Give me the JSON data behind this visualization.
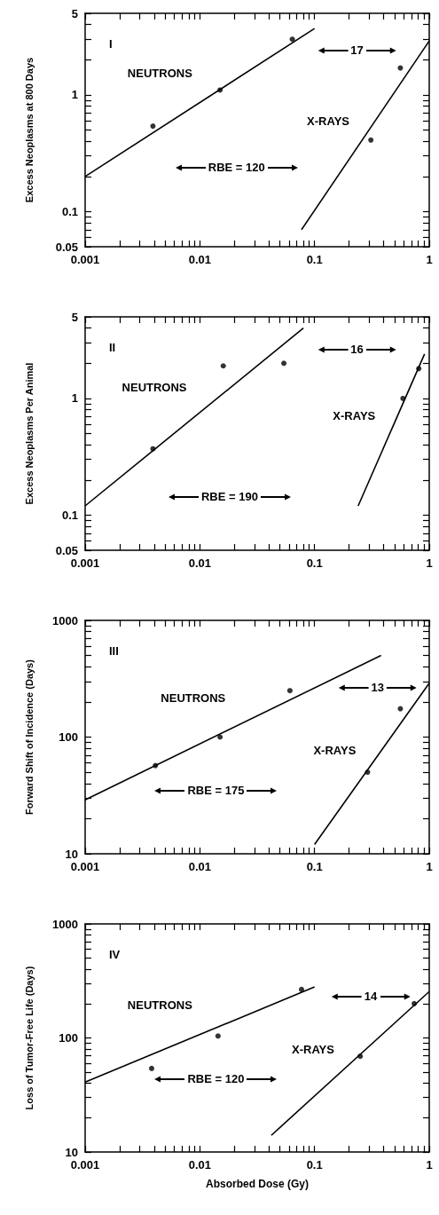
{
  "chart_data": [
    {
      "type": "line",
      "title": "I",
      "ylabel": "Excess Neoplasms at 800 Days",
      "log": "xy",
      "xlim": [
        0.001,
        1
      ],
      "ylim": [
        0.05,
        5
      ],
      "xticks": [
        0.001,
        {
          "value": 0.002,
          "label": null
        },
        {
          "value": 0.003,
          "label": null
        },
        {
          "value": 0.004,
          "label": null
        },
        {
          "value": 0.005,
          "label": null
        },
        {
          "value": 0.006,
          "label": null
        },
        {
          "value": 0.007,
          "label": null
        },
        {
          "value": 0.008,
          "label": null
        },
        {
          "value": 0.009,
          "label": null
        },
        0.01,
        {
          "value": 0.02,
          "label": null
        },
        {
          "value": 0.03,
          "label": null
        },
        {
          "value": 0.04,
          "label": null
        },
        {
          "value": 0.05,
          "label": null
        },
        {
          "value": 0.06,
          "label": null
        },
        {
          "value": 0.07,
          "label": null
        },
        {
          "value": 0.08,
          "label": null
        },
        {
          "value": 0.09,
          "label": null
        },
        0.1,
        {
          "value": 0.2,
          "label": null
        },
        {
          "value": 0.3,
          "label": null
        },
        {
          "value": 0.4,
          "label": null
        },
        {
          "value": 0.5,
          "label": null
        },
        {
          "value": 0.6,
          "label": null
        },
        {
          "value": 0.7,
          "label": null
        },
        {
          "value": 0.8,
          "label": null
        },
        {
          "value": 0.9,
          "label": null
        },
        1
      ],
      "yticks": [
        0.05,
        {
          "value": 0.06,
          "label": null
        },
        {
          "value": 0.07,
          "label": null
        },
        {
          "value": 0.08,
          "label": null
        },
        {
          "value": 0.09,
          "label": null
        },
        0.1,
        {
          "value": 0.2,
          "label": null
        },
        {
          "value": 0.3,
          "label": null
        },
        {
          "value": 0.4,
          "label": null
        },
        {
          "value": 0.5,
          "label": null
        },
        {
          "value": 0.6,
          "label": null
        },
        {
          "value": 0.7,
          "label": null
        },
        {
          "value": 0.8,
          "label": null
        },
        {
          "value": 0.9,
          "label": null
        },
        1,
        {
          "value": 2,
          "label": null
        },
        {
          "value": 3,
          "label": null
        },
        {
          "value": 4,
          "label": null
        },
        5
      ],
      "series": [
        {
          "name": "NEUTRONS",
          "color": "#000000",
          "x": [
            0.001,
            0.1
          ],
          "values": [
            0.2,
            3.7
          ]
        },
        {
          "type": "scatter",
          "color": "#000000",
          "x": [
            0.0039,
            0.015,
            0.064
          ],
          "values": [
            0.54,
            1.1,
            3.0
          ]
        },
        {
          "name": "X-RAYS",
          "color": "#000000",
          "x": [
            0.077,
            1
          ],
          "values": [
            0.07,
            2.9
          ]
        },
        {
          "type": "scatter",
          "color": "#000000",
          "x": [
            0.31,
            0.56
          ],
          "values": [
            0.41,
            1.7
          ]
        }
      ],
      "annotations": [
        "RBE = 120",
        "17"
      ]
    },
    {
      "type": "line",
      "title": "II",
      "ylabel": "Excess Neoplasms Per Animal",
      "log": "xy",
      "xlim": [
        0.001,
        1
      ],
      "ylim": [
        0.05,
        5
      ],
      "xticks": [
        0.001,
        {
          "value": 0.002,
          "label": null
        },
        {
          "value": 0.003,
          "label": null
        },
        {
          "value": 0.004,
          "label": null
        },
        {
          "value": 0.005,
          "label": null
        },
        {
          "value": 0.006,
          "label": null
        },
        {
          "value": 0.007,
          "label": null
        },
        {
          "value": 0.008,
          "label": null
        },
        {
          "value": 0.009,
          "label": null
        },
        0.01,
        {
          "value": 0.02,
          "label": null
        },
        {
          "value": 0.03,
          "label": null
        },
        {
          "value": 0.04,
          "label": null
        },
        {
          "value": 0.05,
          "label": null
        },
        {
          "value": 0.06,
          "label": null
        },
        {
          "value": 0.07,
          "label": null
        },
        {
          "value": 0.08,
          "label": null
        },
        {
          "value": 0.09,
          "label": null
        },
        0.1,
        {
          "value": 0.2,
          "label": null
        },
        {
          "value": 0.3,
          "label": null
        },
        {
          "value": 0.4,
          "label": null
        },
        {
          "value": 0.5,
          "label": null
        },
        {
          "value": 0.6,
          "label": null
        },
        {
          "value": 0.7,
          "label": null
        },
        {
          "value": 0.8,
          "label": null
        },
        {
          "value": 0.9,
          "label": null
        },
        1
      ],
      "yticks": [
        0.05,
        {
          "value": 0.06,
          "label": null
        },
        {
          "value": 0.07,
          "label": null
        },
        {
          "value": 0.08,
          "label": null
        },
        {
          "value": 0.09,
          "label": null
        },
        0.1,
        {
          "value": 0.2,
          "label": null
        },
        {
          "value": 0.3,
          "label": null
        },
        {
          "value": 0.4,
          "label": null
        },
        {
          "value": 0.5,
          "label": null
        },
        {
          "value": 0.6,
          "label": null
        },
        {
          "value": 0.7,
          "label": null
        },
        {
          "value": 0.8,
          "label": null
        },
        {
          "value": 0.9,
          "label": null
        },
        1,
        {
          "value": 2,
          "label": null
        },
        {
          "value": 3,
          "label": null
        },
        {
          "value": 4,
          "label": null
        },
        5
      ],
      "series": [
        {
          "name": "NEUTRONS",
          "color": "#000000",
          "x": [
            0.001,
            0.08
          ],
          "values": [
            0.12,
            4.0
          ]
        },
        {
          "type": "scatter",
          "color": "#000000",
          "x": [
            0.0039,
            0.016,
            0.054
          ],
          "values": [
            0.37,
            1.9,
            2.0
          ]
        },
        {
          "name": "X-RAYS",
          "color": "#000000",
          "x": [
            0.24,
            0.91
          ],
          "values": [
            0.12,
            2.4
          ]
        },
        {
          "type": "scatter",
          "color": "#000000",
          "x": [
            0.59,
            0.81
          ],
          "values": [
            1.0,
            1.8
          ]
        }
      ],
      "annotations": [
        "RBE = 190",
        "16"
      ]
    },
    {
      "type": "line",
      "title": "III",
      "ylabel": "Forward Shift of Incidence (Days)",
      "log": "xy",
      "xlim": [
        0.001,
        1
      ],
      "ylim": [
        10,
        1000
      ],
      "xticks": [
        0.001,
        {
          "value": 0.002,
          "label": null
        },
        {
          "value": 0.003,
          "label": null
        },
        {
          "value": 0.004,
          "label": null
        },
        {
          "value": 0.005,
          "label": null
        },
        {
          "value": 0.006,
          "label": null
        },
        {
          "value": 0.007,
          "label": null
        },
        {
          "value": 0.008,
          "label": null
        },
        {
          "value": 0.009,
          "label": null
        },
        0.01,
        {
          "value": 0.02,
          "label": null
        },
        {
          "value": 0.03,
          "label": null
        },
        {
          "value": 0.04,
          "label": null
        },
        {
          "value": 0.05,
          "label": null
        },
        {
          "value": 0.06,
          "label": null
        },
        {
          "value": 0.07,
          "label": null
        },
        {
          "value": 0.08,
          "label": null
        },
        {
          "value": 0.09,
          "label": null
        },
        0.1,
        {
          "value": 0.2,
          "label": null
        },
        {
          "value": 0.3,
          "label": null
        },
        {
          "value": 0.4,
          "label": null
        },
        {
          "value": 0.5,
          "label": null
        },
        {
          "value": 0.6,
          "label": null
        },
        {
          "value": 0.7,
          "label": null
        },
        {
          "value": 0.8,
          "label": null
        },
        {
          "value": 0.9,
          "label": null
        },
        1
      ],
      "yticks": [
        10,
        {
          "value": 20,
          "label": null
        },
        {
          "value": 30,
          "label": null
        },
        {
          "value": 40,
          "label": null
        },
        {
          "value": 50,
          "label": null
        },
        {
          "value": 60,
          "label": null
        },
        {
          "value": 70,
          "label": null
        },
        {
          "value": 80,
          "label": null
        },
        {
          "value": 90,
          "label": null
        },
        100,
        {
          "value": 200,
          "label": null
        },
        {
          "value": 300,
          "label": null
        },
        {
          "value": 400,
          "label": null
        },
        {
          "value": 500,
          "label": null
        },
        {
          "value": 600,
          "label": null
        },
        {
          "value": 700,
          "label": null
        },
        {
          "value": 800,
          "label": null
        },
        {
          "value": 900,
          "label": null
        },
        1000
      ],
      "series": [
        {
          "name": "NEUTRONS",
          "color": "#000000",
          "x": [
            0.001,
            0.38
          ],
          "values": [
            29,
            500
          ]
        },
        {
          "type": "scatter",
          "color": "#000000",
          "x": [
            0.0041,
            0.015,
            0.061
          ],
          "values": [
            57,
            100,
            250
          ]
        },
        {
          "name": "X-RAYS",
          "color": "#000000",
          "x": [
            0.1,
            1
          ],
          "values": [
            12,
            290
          ]
        },
        {
          "type": "scatter",
          "color": "#000000",
          "x": [
            0.29,
            0.56
          ],
          "values": [
            50,
            175
          ]
        }
      ],
      "annotations": [
        "RBE = 175",
        "13"
      ]
    },
    {
      "type": "line",
      "title": "IV",
      "ylabel": "Loss of Tumor-Free Life (Days)",
      "xlabel": "Absorbed Dose (Gy)",
      "log": "xy",
      "xlim": [
        0.001,
        1
      ],
      "ylim": [
        10,
        1000
      ],
      "xticks": [
        0.001,
        {
          "value": 0.002,
          "label": null
        },
        {
          "value": 0.003,
          "label": null
        },
        {
          "value": 0.004,
          "label": null
        },
        {
          "value": 0.005,
          "label": null
        },
        {
          "value": 0.006,
          "label": null
        },
        {
          "value": 0.007,
          "label": null
        },
        {
          "value": 0.008,
          "label": null
        },
        {
          "value": 0.009,
          "label": null
        },
        0.01,
        {
          "value": 0.02,
          "label": null
        },
        {
          "value": 0.03,
          "label": null
        },
        {
          "value": 0.04,
          "label": null
        },
        {
          "value": 0.05,
          "label": null
        },
        {
          "value": 0.06,
          "label": null
        },
        {
          "value": 0.07,
          "label": null
        },
        {
          "value": 0.08,
          "label": null
        },
        {
          "value": 0.09,
          "label": null
        },
        0.1,
        {
          "value": 0.2,
          "label": null
        },
        {
          "value": 0.3,
          "label": null
        },
        {
          "value": 0.4,
          "label": null
        },
        {
          "value": 0.5,
          "label": null
        },
        {
          "value": 0.6,
          "label": null
        },
        {
          "value": 0.7,
          "label": null
        },
        {
          "value": 0.8,
          "label": null
        },
        {
          "value": 0.9,
          "label": null
        },
        1
      ],
      "yticks": [
        10,
        {
          "value": 20,
          "label": null
        },
        {
          "value": 30,
          "label": null
        },
        {
          "value": 40,
          "label": null
        },
        {
          "value": 50,
          "label": null
        },
        {
          "value": 60,
          "label": null
        },
        {
          "value": 70,
          "label": null
        },
        {
          "value": 80,
          "label": null
        },
        {
          "value": 90,
          "label": null
        },
        100,
        {
          "value": 200,
          "label": null
        },
        {
          "value": 300,
          "label": null
        },
        {
          "value": 400,
          "label": null
        },
        {
          "value": 500,
          "label": null
        },
        {
          "value": 600,
          "label": null
        },
        {
          "value": 700,
          "label": null
        },
        {
          "value": 800,
          "label": null
        },
        {
          "value": 900,
          "label": null
        },
        1000
      ],
      "series": [
        {
          "name": "NEUTRONS",
          "color": "#000000",
          "x": [
            0.001,
            0.1
          ],
          "values": [
            41,
            280
          ]
        },
        {
          "type": "scatter",
          "color": "#000000",
          "x": [
            0.0038,
            0.0144,
            0.077
          ],
          "values": [
            54,
            104,
            266
          ]
        },
        {
          "name": "X-RAYS",
          "color": "#000000",
          "x": [
            0.042,
            1
          ],
          "values": [
            14,
            255
          ]
        },
        {
          "type": "scatter",
          "color": "#000000",
          "x": [
            0.25,
            0.74
          ],
          "values": [
            69,
            200
          ]
        }
      ],
      "annotations": [
        "RBE = 120",
        "14"
      ]
    }
  ]
}
